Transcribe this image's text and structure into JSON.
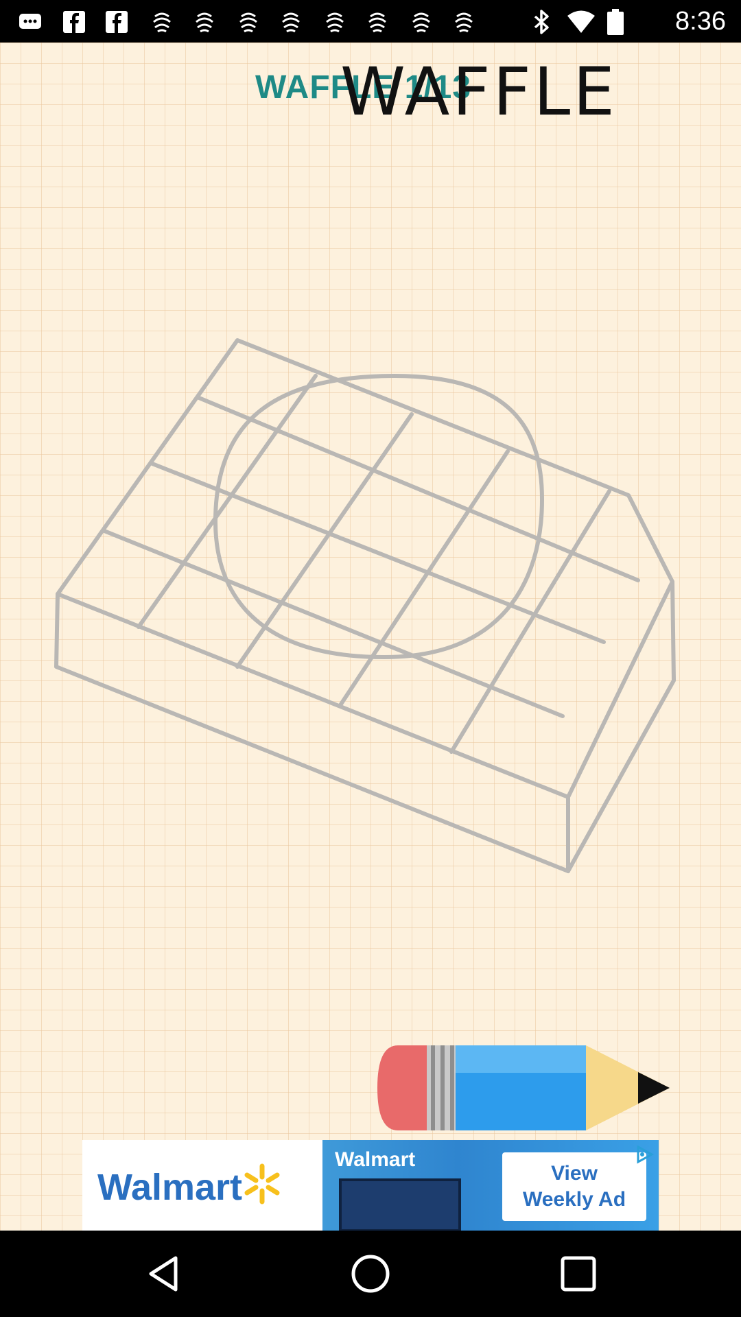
{
  "status_bar": {
    "time": "8:36",
    "notification_icons": [
      "messages-icon",
      "facebook-icon",
      "facebook-icon",
      "app-notification-icon",
      "app-notification-icon",
      "app-notification-icon",
      "app-notification-icon",
      "app-notification-icon",
      "app-notification-icon",
      "app-notification-icon",
      "app-notification-icon"
    ],
    "system_icons": [
      "bluetooth-icon",
      "wifi-icon",
      "battery-icon"
    ]
  },
  "lesson": {
    "step_title": "WAFFLE 1/13",
    "word_title": "WAFFLE"
  },
  "drawing": {
    "subject": "waffle-sketch",
    "stroke_color": "#b9b7b4"
  },
  "controls": {
    "pencil_icon": "pencil-icon"
  },
  "ad": {
    "brand": "Walmart",
    "photo_label": "Walmart",
    "cta_line1": "View",
    "cta_line2": "Weekly Ad",
    "brand_color": "#2a6fc0",
    "spark_color": "#f7c01c"
  },
  "nav_bar": {
    "buttons": [
      "back-icon",
      "home-icon",
      "recents-icon"
    ]
  }
}
